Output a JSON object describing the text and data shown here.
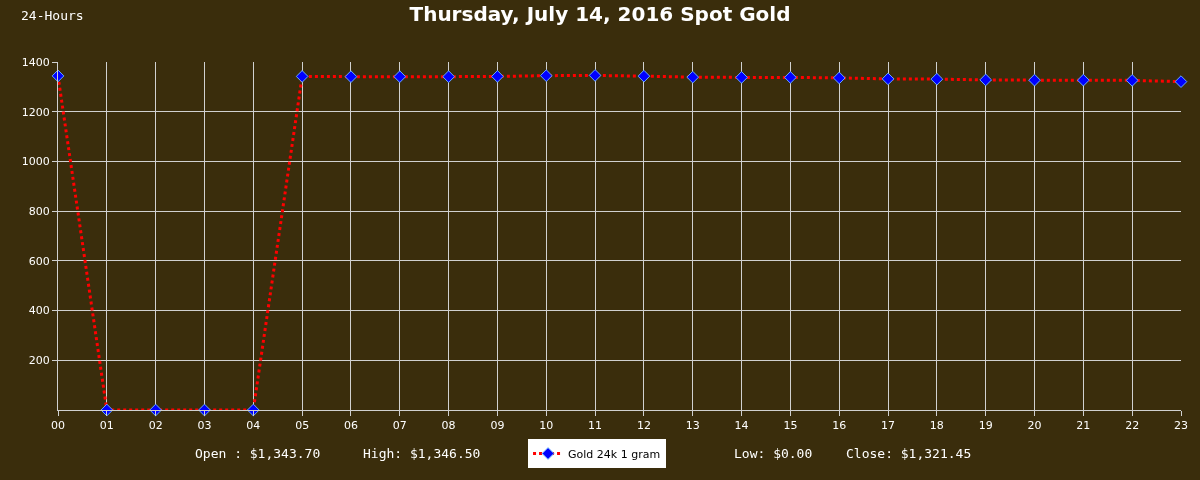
{
  "chart_data": {
    "type": "line",
    "title": "Thursday, July 14, 2016 Spot Gold",
    "annotations": [
      "24-Hours",
      "Open : $1,343.70",
      "High: $1,346.50",
      "Low: $0.00",
      "Close: $1,321.45"
    ],
    "x": [
      0,
      1,
      2,
      3,
      4,
      5,
      6,
      7,
      8,
      9,
      10,
      11,
      12,
      13,
      14,
      15,
      16,
      17,
      18,
      19,
      20,
      21,
      22,
      23
    ],
    "series": [
      {
        "name": "Gold 24k 1 gram",
        "color": "#ff0000",
        "values": [
          1344,
          0,
          0,
          0,
          0,
          1342,
          1341,
          1341,
          1341,
          1342,
          1345,
          1346,
          1343,
          1339,
          1338,
          1338,
          1336,
          1332,
          1331,
          1328,
          1327,
          1327,
          1326,
          1321
        ]
      }
    ],
    "xlim": [
      0,
      23
    ],
    "xticks": [
      {
        "value": 0,
        "label": "00"
      },
      {
        "value": 1,
        "label": "01"
      },
      {
        "value": 2,
        "label": "02"
      },
      {
        "value": 3,
        "label": "03"
      },
      {
        "value": 4,
        "label": "04"
      },
      {
        "value": 5,
        "label": "05"
      },
      {
        "value": 6,
        "label": "06"
      },
      {
        "value": 7,
        "label": "07"
      },
      {
        "value": 8,
        "label": "08"
      },
      {
        "value": 9,
        "label": "09"
      },
      {
        "value": 10,
        "label": "10"
      },
      {
        "value": 11,
        "label": "11"
      },
      {
        "value": 12,
        "label": "12"
      },
      {
        "value": 13,
        "label": "13"
      },
      {
        "value": 14,
        "label": "14"
      },
      {
        "value": 15,
        "label": "15"
      },
      {
        "value": 16,
        "label": "16"
      },
      {
        "value": 17,
        "label": "17"
      },
      {
        "value": 18,
        "label": "18"
      },
      {
        "value": 19,
        "label": "19"
      },
      {
        "value": 20,
        "label": "20"
      },
      {
        "value": 21,
        "label": "21"
      },
      {
        "value": 22,
        "label": "22"
      },
      {
        "value": 23,
        "label": "23"
      }
    ],
    "ylim": [
      0,
      1400
    ],
    "yticks": [
      200,
      400,
      600,
      800,
      1000,
      1200,
      1400
    ],
    "grid": true,
    "legend": "bottom",
    "marker": "diamond",
    "line_style": "dotted"
  }
}
